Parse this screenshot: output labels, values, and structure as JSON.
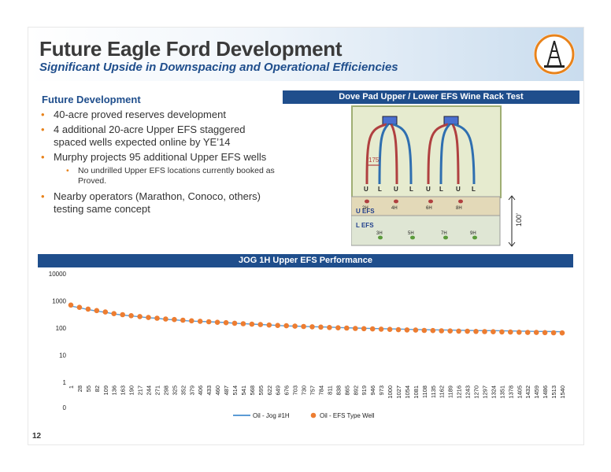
{
  "header": {
    "title": "Future Eagle Ford Development",
    "subtitle": "Significant Upside in Downspacing and Operational Efficiencies"
  },
  "left": {
    "section_title": "Future Development",
    "bullets": [
      "40-acre proved reserves development",
      "4 additional 20-acre Upper EFS staggered spaced wells expected online by YE’14",
      "Murphy projects 95 additional Upper EFS wells",
      "No undrilled Upper EFS locations currently booked as Proved.",
      "Nearby operators (Marathon, Conoco, others) testing same concept"
    ]
  },
  "diagram": {
    "title": "Dove Pad Upper / Lower EFS Wine Rack Test",
    "spacing_label": "175’",
    "well_letters": [
      "U",
      "L",
      "U",
      "L",
      "U",
      "L",
      "U",
      "L"
    ],
    "upper_wells": [
      "2H",
      "4H",
      "6H",
      "8H"
    ],
    "lower_wells": [
      "3H",
      "5H",
      "7H",
      "9H"
    ],
    "upper_label": "U EFS",
    "lower_label": "L EFS",
    "vertical_label": "100’",
    "colors": {
      "upper": "#b04040",
      "lower": "#2f6fb0",
      "pad": "#4a6fd0"
    }
  },
  "chart": {
    "title": "JOG 1H Upper EFS Performance",
    "page_number": "12"
  },
  "chart_data": {
    "type": "line",
    "xlabel": "",
    "ylabel": "",
    "log_scale_y": true,
    "ylim": [
      1,
      10000
    ],
    "y_ticks": [
      "10000",
      "1000",
      "100",
      "10",
      "1",
      "0"
    ],
    "x_ticks": [
      "1",
      "28",
      "55",
      "82",
      "109",
      "136",
      "163",
      "190",
      "217",
      "244",
      "271",
      "298",
      "325",
      "352",
      "379",
      "406",
      "433",
      "460",
      "487",
      "514",
      "541",
      "568",
      "595",
      "622",
      "649",
      "676",
      "703",
      "730",
      "757",
      "784",
      "811",
      "838",
      "865",
      "892",
      "919",
      "946",
      "973",
      "1000",
      "1027",
      "1054",
      "1081",
      "1108",
      "1135",
      "1162",
      "1189",
      "1216",
      "1243",
      "1270",
      "1297",
      "1324",
      "1351",
      "1378",
      "1405",
      "1432",
      "1459",
      "1486",
      "1513",
      "1540"
    ],
    "series": [
      {
        "name": "Oil - Jog #1H",
        "color": "#5b9bd5",
        "x": [
          1,
          28,
          55,
          82,
          109,
          136,
          163,
          190,
          217,
          244,
          271,
          298,
          325,
          352,
          379,
          406,
          433,
          460,
          487,
          514,
          541,
          568,
          595,
          622,
          649,
          676,
          703,
          730,
          757,
          784,
          811,
          838,
          865,
          892,
          919,
          946,
          973,
          1000,
          1027,
          1054,
          1081,
          1108,
          1135,
          1162,
          1189,
          1216,
          1243,
          1270,
          1297,
          1324,
          1351,
          1378,
          1405,
          1432,
          1459,
          1486,
          1513,
          1540
        ],
        "values": [
          650,
          560,
          480,
          420,
          380,
          330,
          300,
          280,
          260,
          240,
          230,
          210,
          200,
          190,
          180,
          175,
          170,
          165,
          160,
          150,
          145,
          140,
          135,
          130,
          125,
          120,
          118,
          115,
          112,
          110,
          108,
          105,
          102,
          100,
          98,
          96,
          95,
          93,
          92,
          90,
          88,
          87,
          86,
          85,
          84,
          83,
          82,
          81,
          80,
          80,
          79,
          78,
          77,
          76,
          75,
          75,
          74,
          73
        ]
      },
      {
        "name": "Oil - EFS Type Well",
        "color": "#ed7d31",
        "x": [
          1,
          28,
          55,
          82,
          109,
          136,
          163,
          190,
          217,
          244,
          271,
          298,
          325,
          352,
          379,
          406,
          433,
          460,
          487,
          514,
          541,
          568,
          595,
          622,
          649,
          676,
          703,
          730,
          757,
          784,
          811,
          838,
          865,
          892,
          919,
          946,
          973,
          1000,
          1027,
          1054,
          1081,
          1108,
          1135,
          1162,
          1189,
          1216,
          1243,
          1270,
          1297,
          1324,
          1351,
          1378,
          1405,
          1432,
          1459,
          1486,
          1513,
          1540
        ],
        "values": [
          700,
          580,
          500,
          440,
          390,
          340,
          310,
          285,
          265,
          245,
          230,
          215,
          205,
          195,
          185,
          178,
          170,
          163,
          157,
          150,
          144,
          139,
          134,
          129,
          125,
          121,
          117,
          114,
          111,
          108,
          105,
          102,
          100,
          97,
          95,
          93,
          91,
          89,
          87,
          85,
          84,
          82,
          81,
          79,
          78,
          77,
          76,
          75,
          74,
          73,
          72,
          71,
          70,
          69,
          69,
          68,
          67,
          66
        ]
      }
    ],
    "legend_position": "bottom"
  }
}
